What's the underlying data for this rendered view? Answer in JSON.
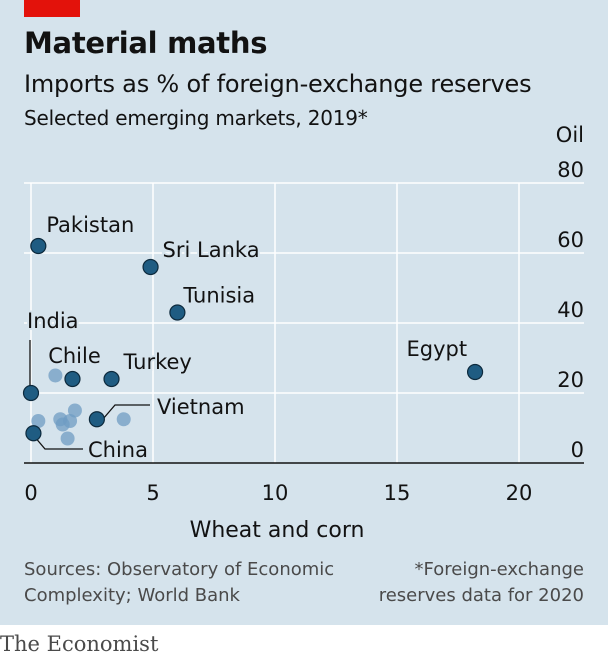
{
  "header": {
    "title": "Material maths",
    "subtitle": "Imports as % of foreign-exchange reserves",
    "subsubtitle": "Selected emerging markets, 2019*"
  },
  "footer": {
    "source": "Sources: Observatory of Economic Complexity; World Bank",
    "footnote": "*Foreign-exchange reserves data for 2020",
    "brand": "The Economist"
  },
  "colors": {
    "background": "#d5e3ec",
    "highlight_point": "#1f5c82",
    "background_point": "#6f9cc3",
    "tag": "#e3120b"
  },
  "chart_data": {
    "type": "scatter",
    "xlabel": "Wheat and corn",
    "ylabel": "Oil",
    "xlim": [
      0,
      22
    ],
    "ylim": [
      0,
      80
    ],
    "xticks": [
      0,
      5,
      10,
      15,
      20
    ],
    "yticks": [
      0,
      20,
      40,
      60,
      80
    ],
    "grid": true,
    "labeled_points": [
      {
        "label": "Pakistan",
        "x": 0.3,
        "y": 62
      },
      {
        "label": "Sri Lanka",
        "x": 4.9,
        "y": 56
      },
      {
        "label": "Tunisia",
        "x": 6.0,
        "y": 43
      },
      {
        "label": "India",
        "x": 0.0,
        "y": 20
      },
      {
        "label": "Chile",
        "x": 1.7,
        "y": 24
      },
      {
        "label": "Turkey",
        "x": 3.3,
        "y": 24
      },
      {
        "label": "Egypt",
        "x": 18.2,
        "y": 26
      },
      {
        "label": "Vietnam",
        "x": 2.7,
        "y": 12.5
      },
      {
        "label": "China",
        "x": 0.1,
        "y": 8.5
      }
    ],
    "unlabeled_points": [
      {
        "x": 1.0,
        "y": 25
      },
      {
        "x": 0.3,
        "y": 12
      },
      {
        "x": 1.2,
        "y": 12.5
      },
      {
        "x": 1.3,
        "y": 11
      },
      {
        "x": 1.6,
        "y": 12
      },
      {
        "x": 1.8,
        "y": 15
      },
      {
        "x": 1.5,
        "y": 7
      },
      {
        "x": 3.8,
        "y": 12.5
      }
    ]
  }
}
